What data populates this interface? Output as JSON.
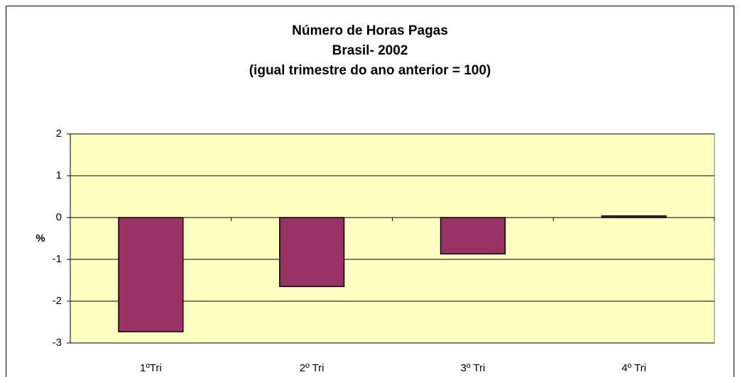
{
  "chart_data": {
    "type": "bar",
    "title": [
      "Número de Horas Pagas",
      "Brasil- 2002",
      "(igual trimestre do ano anterior = 100)"
    ],
    "y_label": "%",
    "categories": [
      "1ºTri",
      "2º Tri",
      "3º Tri",
      "4º Tri"
    ],
    "values": [
      -2.73,
      -1.65,
      -0.87,
      0.04
    ],
    "color": "#993366",
    "ylim": [
      -3,
      2
    ],
    "yticks": [
      -3,
      -2,
      -1,
      0,
      1,
      2
    ],
    "grid": true
  }
}
